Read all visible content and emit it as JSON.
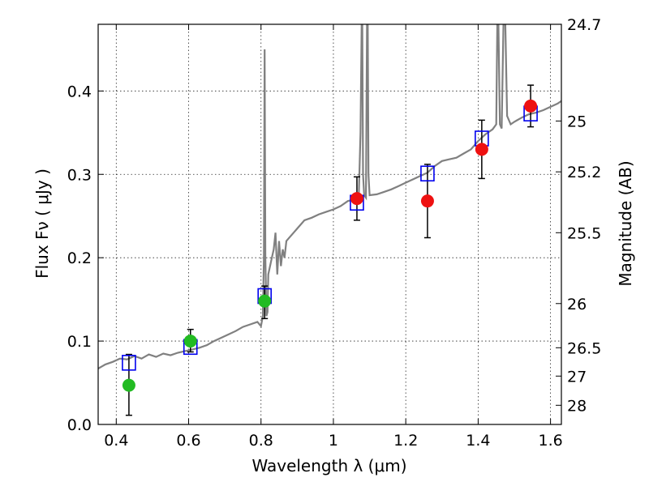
{
  "chart_data": {
    "type": "scatter",
    "xlabel": "Wavelength  λ (μm)",
    "ylabel": "Flux  Fν  ( μJy )",
    "y2label": "Magnitude (AB)",
    "xlim": [
      0.35,
      1.63
    ],
    "ylim": [
      0.0,
      0.48
    ],
    "grid": true,
    "x_ticks": [
      0.4,
      0.6,
      0.8,
      1.0,
      1.2,
      1.4,
      1.6
    ],
    "x_tick_labels": [
      "0.4",
      "0.6",
      "0.8",
      "1",
      "1.2",
      "1.4",
      "1.6"
    ],
    "y_ticks": [
      0.0,
      0.1,
      0.2,
      0.3,
      0.4
    ],
    "y_tick_labels": [
      "0.0",
      "0.1",
      "0.2",
      "0.3",
      "0.4"
    ],
    "y2_ticks": [
      {
        "label": "24.7",
        "flux": 0.48
      },
      {
        "label": "25",
        "flux": 0.364
      },
      {
        "label": "25.2",
        "flux": 0.303
      },
      {
        "label": "25.5",
        "flux": 0.23
      },
      {
        "label": "26",
        "flux": 0.145
      },
      {
        "label": "26.5",
        "flux": 0.092
      },
      {
        "label": "27",
        "flux": 0.058
      },
      {
        "label": "28",
        "flux": 0.023
      }
    ],
    "colors": {
      "model": "#808080",
      "model_photometry": "#0000ee",
      "observed_blue": "#22bb22",
      "observed_red": "#ee1111",
      "errorbar": "#000000"
    },
    "series": [
      {
        "kind": "line",
        "x": [
          0.35,
          0.37,
          0.39,
          0.41,
          0.43,
          0.45,
          0.47,
          0.49,
          0.51,
          0.53,
          0.55,
          0.57,
          0.59,
          0.61,
          0.63,
          0.65,
          0.67,
          0.69,
          0.71,
          0.73,
          0.75,
          0.77,
          0.79,
          0.8,
          0.805,
          0.808,
          0.81,
          0.812,
          0.815,
          0.818,
          0.82,
          0.825,
          0.83,
          0.835,
          0.84,
          0.845,
          0.85,
          0.855,
          0.86,
          0.865,
          0.87,
          0.88,
          0.89,
          0.9,
          0.92,
          0.94,
          0.96,
          0.98,
          1.0,
          1.02,
          1.04,
          1.06,
          1.07,
          1.075,
          1.078,
          1.08,
          1.082,
          1.085,
          1.09,
          1.093,
          1.095,
          1.097,
          1.1,
          1.12,
          1.14,
          1.16,
          1.18,
          1.2,
          1.22,
          1.24,
          1.26,
          1.28,
          1.3,
          1.32,
          1.34,
          1.36,
          1.38,
          1.4,
          1.42,
          1.44,
          1.45,
          1.453,
          1.456,
          1.46,
          1.465,
          1.47,
          1.475,
          1.48,
          1.49,
          1.5,
          1.52,
          1.54,
          1.56,
          1.58,
          1.6,
          1.62,
          1.63
        ],
        "y": [
          0.067,
          0.072,
          0.075,
          0.079,
          0.078,
          0.082,
          0.079,
          0.084,
          0.081,
          0.085,
          0.083,
          0.086,
          0.088,
          0.09,
          0.092,
          0.095,
          0.1,
          0.104,
          0.108,
          0.112,
          0.117,
          0.12,
          0.123,
          0.118,
          0.13,
          0.2,
          0.45,
          0.2,
          0.13,
          0.135,
          0.18,
          0.19,
          0.2,
          0.21,
          0.23,
          0.18,
          0.22,
          0.19,
          0.21,
          0.2,
          0.22,
          0.225,
          0.23,
          0.235,
          0.245,
          0.248,
          0.252,
          0.255,
          0.258,
          0.262,
          0.268,
          0.27,
          0.272,
          0.35,
          0.48,
          0.48,
          0.3,
          0.275,
          0.272,
          0.48,
          0.48,
          0.3,
          0.275,
          0.276,
          0.279,
          0.282,
          0.286,
          0.29,
          0.294,
          0.298,
          0.302,
          0.31,
          0.316,
          0.318,
          0.32,
          0.325,
          0.33,
          0.34,
          0.348,
          0.354,
          0.36,
          0.48,
          0.48,
          0.36,
          0.355,
          0.48,
          0.48,
          0.37,
          0.36,
          0.363,
          0.368,
          0.372,
          0.374,
          0.377,
          0.381,
          0.385,
          0.388
        ]
      },
      {
        "kind": "model_photometry",
        "x": [
          0.435,
          0.605,
          0.81,
          1.065,
          1.26,
          1.41,
          1.545
        ],
        "y": [
          0.074,
          0.093,
          0.154,
          0.266,
          0.301,
          0.343,
          0.373
        ]
      },
      {
        "kind": "observed_blue",
        "x": [
          0.435,
          0.605,
          0.81
        ],
        "y": [
          0.047,
          0.1,
          0.148
        ],
        "err_low": [
          0.036,
          0.013,
          0.021
        ],
        "err_high": [
          0.037,
          0.014,
          0.018
        ]
      },
      {
        "kind": "observed_red",
        "x": [
          1.065,
          1.26,
          1.41,
          1.545
        ],
        "y": [
          0.271,
          0.268,
          0.33,
          0.382
        ],
        "err_low": [
          0.026,
          0.044,
          0.035,
          0.025
        ],
        "err_high": [
          0.026,
          0.044,
          0.035,
          0.025
        ]
      }
    ]
  }
}
